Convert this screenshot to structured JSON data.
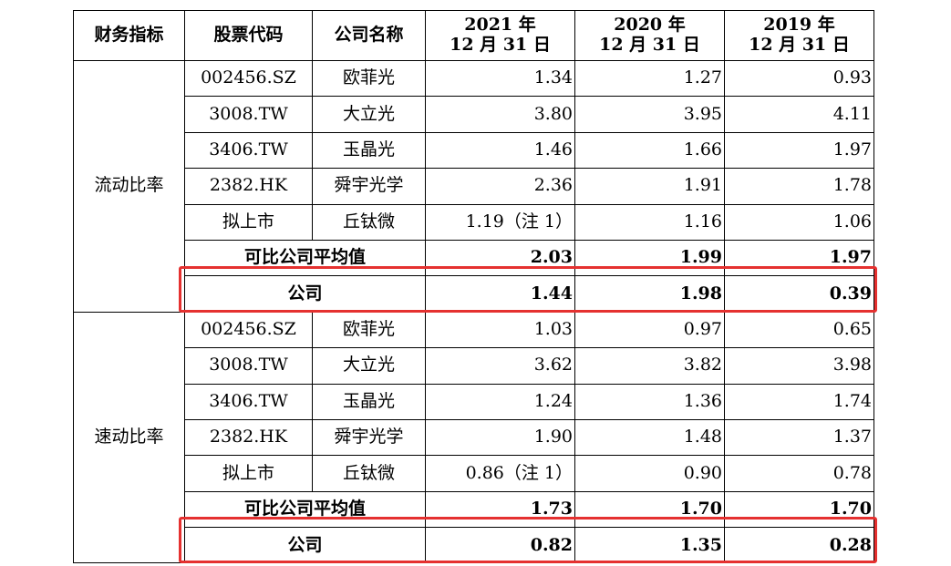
{
  "headers": {
    "metric": "财务指标",
    "code": "股票代码",
    "name": "公司名称",
    "y2021": [
      "2021 年",
      "12 月 31 日"
    ],
    "y2020": [
      "2020 年",
      "12 月 31 日"
    ],
    "y2019": [
      "2019 年",
      "12 月 31 日"
    ]
  },
  "sections": [
    {
      "metric": "流动比率",
      "rows": [
        {
          "code": "002456.SZ",
          "name": "欧菲光",
          "v2021": "1.34",
          "v2020": "1.27",
          "v2019": "0.93"
        },
        {
          "code": "3008.TW",
          "name": "大立光",
          "v2021": "3.80",
          "v2020": "3.95",
          "v2019": "4.11"
        },
        {
          "code": "3406.TW",
          "name": "玉晶光",
          "v2021": "1.46",
          "v2020": "1.66",
          "v2019": "1.97"
        },
        {
          "code": "2382.HK",
          "name": "舜宇光学",
          "v2021": "2.36",
          "v2020": "1.91",
          "v2019": "1.78"
        },
        {
          "code": "拟上市",
          "name": "丘钛微",
          "v2021": "1.19（注 1）",
          "v2020": "1.16",
          "v2019": "1.06"
        }
      ],
      "average": {
        "label": "可比公司平均值",
        "v2021": "2.03",
        "v2020": "1.99",
        "v2019": "1.97"
      },
      "company": {
        "label": "公司",
        "v2021": "1.44",
        "v2020": "1.98",
        "v2019": "0.39"
      }
    },
    {
      "metric": "速动比率",
      "rows": [
        {
          "code": "002456.SZ",
          "name": "欧菲光",
          "v2021": "1.03",
          "v2020": "0.97",
          "v2019": "0.65"
        },
        {
          "code": "3008.TW",
          "name": "大立光",
          "v2021": "3.62",
          "v2020": "3.82",
          "v2019": "3.98"
        },
        {
          "code": "3406.TW",
          "name": "玉晶光",
          "v2021": "1.24",
          "v2020": "1.36",
          "v2019": "1.74"
        },
        {
          "code": "2382.HK",
          "name": "舜宇光学",
          "v2021": "1.90",
          "v2020": "1.48",
          "v2019": "1.37"
        },
        {
          "code": "拟上市",
          "name": "丘钛微",
          "v2021": "0.86（注 1）",
          "v2020": "0.90",
          "v2019": "0.78"
        }
      ],
      "average": {
        "label": "可比公司平均值",
        "v2021": "1.73",
        "v2020": "1.70",
        "v2019": "1.70"
      },
      "company": {
        "label": "公司",
        "v2021": "0.82",
        "v2020": "1.35",
        "v2019": "0.28"
      }
    }
  ],
  "highlight_color": "#e53130"
}
